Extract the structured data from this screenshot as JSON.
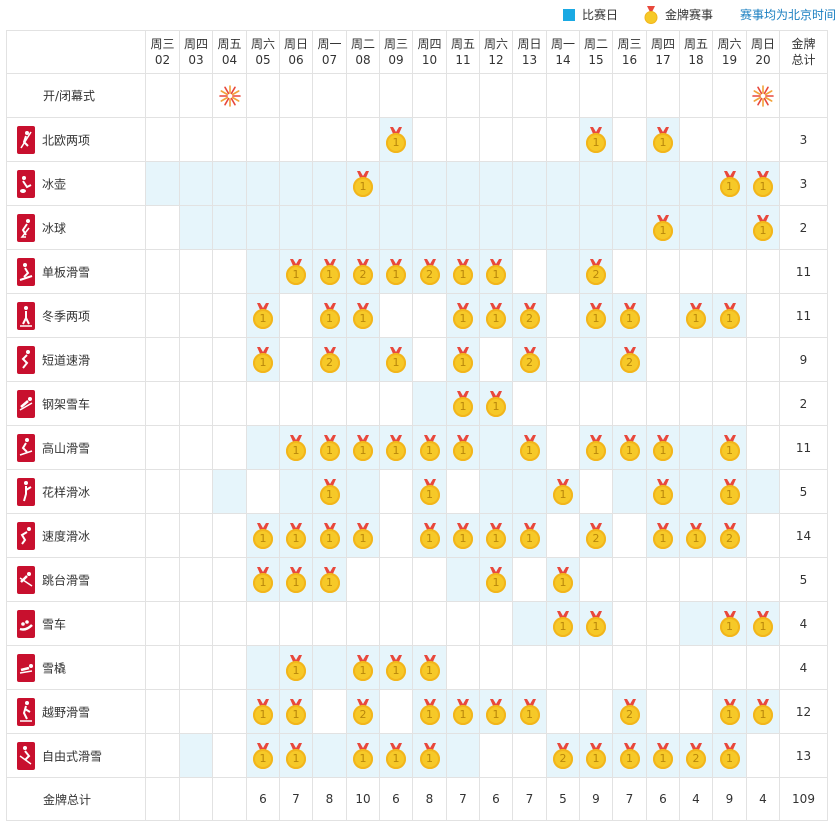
{
  "legend": {
    "competition_day": "比赛日",
    "medal_event": "金牌赛事",
    "time_note": "赛事均为北京时间"
  },
  "header": {
    "total_label_line1": "金牌",
    "total_label_line2": "总计",
    "days": [
      {
        "w": "周三",
        "d": "02"
      },
      {
        "w": "周四",
        "d": "03"
      },
      {
        "w": "周五",
        "d": "04"
      },
      {
        "w": "周六",
        "d": "05"
      },
      {
        "w": "周日",
        "d": "06"
      },
      {
        "w": "周一",
        "d": "07"
      },
      {
        "w": "周二",
        "d": "08"
      },
      {
        "w": "周三",
        "d": "09"
      },
      {
        "w": "周四",
        "d": "10"
      },
      {
        "w": "周五",
        "d": "11"
      },
      {
        "w": "周六",
        "d": "12"
      },
      {
        "w": "周日",
        "d": "13"
      },
      {
        "w": "周一",
        "d": "14"
      },
      {
        "w": "周二",
        "d": "15"
      },
      {
        "w": "周三",
        "d": "16"
      },
      {
        "w": "周四",
        "d": "17"
      },
      {
        "w": "周五",
        "d": "18"
      },
      {
        "w": "周六",
        "d": "19"
      },
      {
        "w": "周日",
        "d": "20"
      }
    ]
  },
  "ceremony": {
    "label": "开/闭幕式",
    "firework_days": [
      2,
      18
    ]
  },
  "colors": {
    "competition_bg": "#e6f5fb",
    "legend_square": "#1aa9e3",
    "icon_red": "#c8102e",
    "medal_gold": "#f6c928",
    "note_blue": "#1a7fc1"
  },
  "sports": [
    {
      "name": "北欧两项",
      "icon": "nordic-combined-icon",
      "total": "3",
      "cells": [
        null,
        null,
        null,
        null,
        null,
        null,
        null,
        "1",
        null,
        null,
        null,
        null,
        null,
        "1",
        null,
        "1",
        null,
        null,
        null
      ],
      "on": [
        0,
        0,
        0,
        0,
        0,
        0,
        0,
        1,
        0,
        0,
        0,
        0,
        0,
        1,
        0,
        1,
        0,
        0,
        0
      ]
    },
    {
      "name": "冰壶",
      "icon": "curling-icon",
      "total": "3",
      "cells": [
        null,
        null,
        null,
        null,
        null,
        null,
        "1",
        null,
        null,
        null,
        null,
        null,
        null,
        null,
        null,
        null,
        null,
        "1",
        "1"
      ],
      "on": [
        1,
        1,
        1,
        1,
        1,
        1,
        1,
        1,
        1,
        1,
        1,
        1,
        1,
        1,
        1,
        1,
        1,
        1,
        1
      ]
    },
    {
      "name": "冰球",
      "icon": "ice-hockey-icon",
      "total": "2",
      "cells": [
        null,
        null,
        null,
        null,
        null,
        null,
        null,
        null,
        null,
        null,
        null,
        null,
        null,
        null,
        null,
        "1",
        null,
        null,
        "1"
      ],
      "on": [
        0,
        1,
        1,
        1,
        1,
        1,
        1,
        1,
        1,
        1,
        1,
        1,
        1,
        1,
        1,
        1,
        1,
        1,
        1
      ]
    },
    {
      "name": "单板滑雪",
      "icon": "snowboard-icon",
      "total": "11",
      "cells": [
        null,
        null,
        null,
        null,
        "1",
        "1",
        "2",
        "1",
        "2",
        "1",
        "1",
        null,
        null,
        "2",
        null,
        null,
        null,
        null,
        null
      ],
      "on": [
        0,
        0,
        0,
        1,
        1,
        1,
        1,
        1,
        1,
        1,
        1,
        0,
        1,
        1,
        0,
        0,
        0,
        0,
        0
      ]
    },
    {
      "name": "冬季两项",
      "icon": "biathlon-icon",
      "total": "11",
      "cells": [
        null,
        null,
        null,
        "1",
        null,
        "1",
        "1",
        null,
        null,
        "1",
        "1",
        "2",
        null,
        "1",
        "1",
        null,
        "1",
        "1",
        null
      ],
      "on": [
        0,
        0,
        0,
        1,
        0,
        1,
        1,
        0,
        0,
        1,
        1,
        1,
        0,
        1,
        1,
        0,
        1,
        1,
        0
      ]
    },
    {
      "name": "短道速滑",
      "icon": "short-track-icon",
      "total": "9",
      "cells": [
        null,
        null,
        null,
        "1",
        null,
        "2",
        null,
        "1",
        null,
        "1",
        null,
        "2",
        null,
        null,
        "2",
        null,
        null,
        null,
        null
      ],
      "on": [
        0,
        0,
        0,
        1,
        0,
        1,
        1,
        1,
        0,
        1,
        0,
        1,
        0,
        1,
        1,
        0,
        0,
        0,
        0
      ]
    },
    {
      "name": "钢架雪车",
      "icon": "skeleton-icon",
      "total": "2",
      "cells": [
        null,
        null,
        null,
        null,
        null,
        null,
        null,
        null,
        null,
        "1",
        "1",
        null,
        null,
        null,
        null,
        null,
        null,
        null,
        null
      ],
      "on": [
        0,
        0,
        0,
        0,
        0,
        0,
        0,
        0,
        1,
        1,
        1,
        0,
        0,
        0,
        0,
        0,
        0,
        0,
        0
      ]
    },
    {
      "name": "高山滑雪",
      "icon": "alpine-skiing-icon",
      "total": "11",
      "cells": [
        null,
        null,
        null,
        null,
        "1",
        "1",
        "1",
        "1",
        "1",
        "1",
        null,
        "1",
        null,
        "1",
        "1",
        "1",
        null,
        "1",
        null
      ],
      "on": [
        0,
        0,
        0,
        1,
        1,
        1,
        1,
        1,
        1,
        1,
        1,
        1,
        0,
        1,
        1,
        1,
        1,
        1,
        0
      ]
    },
    {
      "name": "花样滑冰",
      "icon": "figure-skating-icon",
      "total": "5",
      "cells": [
        null,
        null,
        null,
        null,
        null,
        "1",
        null,
        null,
        "1",
        null,
        null,
        null,
        "1",
        null,
        null,
        "1",
        null,
        "1",
        null
      ],
      "on": [
        0,
        0,
        1,
        0,
        1,
        1,
        1,
        0,
        1,
        0,
        1,
        1,
        1,
        0,
        1,
        1,
        1,
        1,
        1
      ]
    },
    {
      "name": "速度滑冰",
      "icon": "speed-skating-icon",
      "total": "14",
      "cells": [
        null,
        null,
        null,
        "1",
        "1",
        "1",
        "1",
        null,
        "1",
        "1",
        "1",
        "1",
        null,
        "2",
        null,
        "1",
        "1",
        "2",
        null
      ],
      "on": [
        0,
        0,
        0,
        1,
        1,
        1,
        1,
        0,
        1,
        1,
        1,
        1,
        0,
        1,
        0,
        1,
        1,
        1,
        0
      ]
    },
    {
      "name": "跳台滑雪",
      "icon": "ski-jumping-icon",
      "total": "5",
      "cells": [
        null,
        null,
        null,
        "1",
        "1",
        "1",
        null,
        null,
        null,
        null,
        "1",
        null,
        "1",
        null,
        null,
        null,
        null,
        null,
        null
      ],
      "on": [
        0,
        0,
        0,
        1,
        1,
        1,
        0,
        0,
        0,
        1,
        1,
        0,
        1,
        0,
        0,
        0,
        0,
        0,
        0
      ]
    },
    {
      "name": "雪车",
      "icon": "bobsleigh-icon",
      "total": "4",
      "cells": [
        null,
        null,
        null,
        null,
        null,
        null,
        null,
        null,
        null,
        null,
        null,
        null,
        "1",
        "1",
        null,
        null,
        null,
        "1",
        "1"
      ],
      "on": [
        0,
        0,
        0,
        0,
        0,
        0,
        0,
        0,
        0,
        0,
        0,
        1,
        1,
        1,
        0,
        0,
        1,
        1,
        1
      ]
    },
    {
      "name": "雪橇",
      "icon": "luge-icon",
      "total": "4",
      "cells": [
        null,
        null,
        null,
        null,
        "1",
        null,
        "1",
        "1",
        "1",
        null,
        null,
        null,
        null,
        null,
        null,
        null,
        null,
        null,
        null
      ],
      "on": [
        0,
        0,
        0,
        1,
        1,
        1,
        1,
        1,
        1,
        0,
        0,
        0,
        0,
        0,
        0,
        0,
        0,
        0,
        0
      ]
    },
    {
      "name": "越野滑雪",
      "icon": "cross-country-icon",
      "total": "12",
      "cells": [
        null,
        null,
        null,
        "1",
        "1",
        null,
        "2",
        null,
        "1",
        "1",
        "1",
        "1",
        null,
        null,
        "2",
        null,
        null,
        "1",
        "1"
      ],
      "on": [
        0,
        0,
        0,
        1,
        1,
        0,
        1,
        0,
        1,
        1,
        1,
        1,
        0,
        0,
        1,
        0,
        0,
        1,
        1
      ]
    },
    {
      "name": "自由式滑雪",
      "icon": "freestyle-skiing-icon",
      "total": "13",
      "cells": [
        null,
        null,
        null,
        "1",
        "1",
        null,
        "1",
        "1",
        "1",
        null,
        null,
        null,
        "2",
        "1",
        "1",
        "1",
        "2",
        "1",
        null
      ],
      "on": [
        0,
        1,
        0,
        1,
        1,
        1,
        1,
        1,
        1,
        1,
        0,
        0,
        1,
        1,
        1,
        1,
        1,
        1,
        0
      ]
    }
  ],
  "footer": {
    "label": "金牌总计",
    "totals": [
      "",
      "",
      "",
      "6",
      "7",
      "8",
      "10",
      "6",
      "8",
      "7",
      "6",
      "7",
      "5",
      "9",
      "7",
      "6",
      "4",
      "9",
      "4"
    ],
    "grand_total": "109"
  }
}
